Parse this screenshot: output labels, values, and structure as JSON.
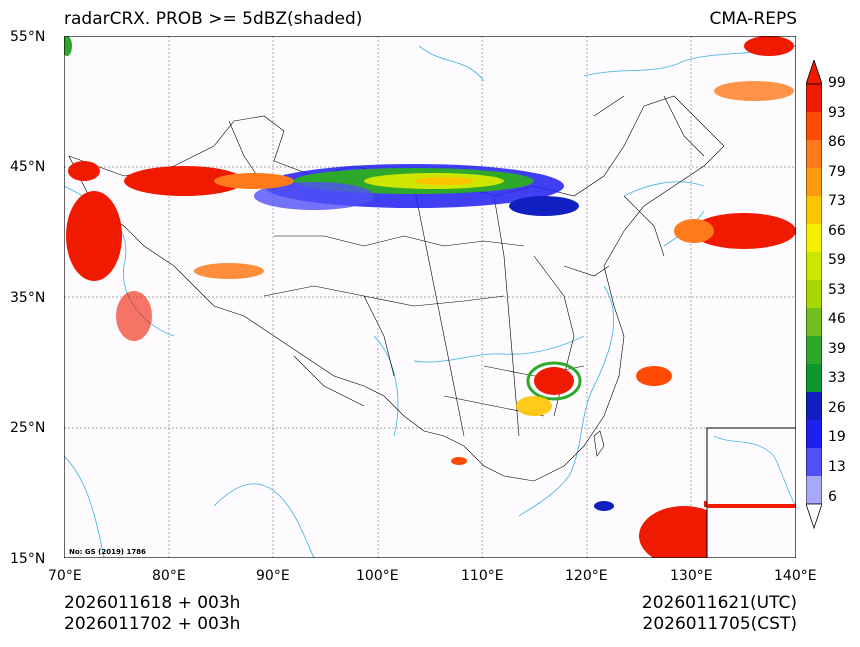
{
  "header": {
    "title_left": "radarCRX. PROB >= 5dBZ(shaded)",
    "title_right": "CMA-REPS"
  },
  "map": {
    "lat_labels": [
      "55°N",
      "45°N",
      "35°N",
      "25°N",
      "15°N"
    ],
    "lon_labels": [
      "70°E",
      "80°E",
      "90°E",
      "100°E",
      "110°E",
      "120°E",
      "130°E",
      "140°E"
    ],
    "approval_no": "No: GS (2019) 1786",
    "extent": {
      "lon": [
        70,
        140
      ],
      "lat": [
        15,
        55
      ]
    }
  },
  "colorbar": {
    "labels": [
      "99",
      "93",
      "86",
      "79",
      "73",
      "66",
      "59",
      "53",
      "46",
      "39",
      "33",
      "26",
      "19",
      "13",
      "6"
    ],
    "colors": [
      "#f01a00",
      "#ff4a00",
      "#ff7a1a",
      "#ff9a10",
      "#ffc400",
      "#f5f000",
      "#cce600",
      "#a8d600",
      "#70c020",
      "#2ea82a",
      "#10962e",
      "#1020c0",
      "#1f1ff0",
      "#5050f8",
      "#a8a8fa"
    ]
  },
  "footer": {
    "init_utc": "2026011618  +  003h",
    "init_cst": "2026011702  +  003h",
    "valid_utc": "2026011621(UTC)",
    "valid_cst": "2026011705(CST)"
  },
  "style": {
    "river_color": "#4fb8e0",
    "border_color": "#000000",
    "grid_color": "#888888"
  }
}
